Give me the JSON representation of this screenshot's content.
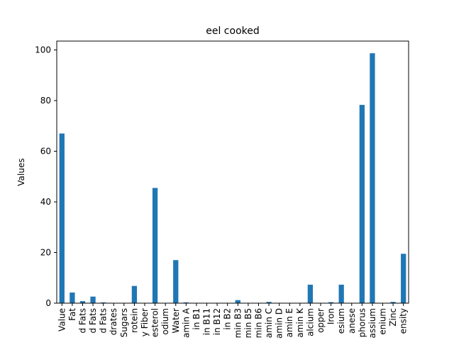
{
  "chart_data": {
    "type": "bar",
    "title": "eel cooked",
    "xlabel": "",
    "ylabel": "Values",
    "ylim": [
      0,
      103.5
    ],
    "yticks": [
      0,
      20,
      40,
      60,
      80,
      100
    ],
    "grid": false,
    "legend": "none",
    "bar_color": "#1f77b4",
    "categories": [
      "Value",
      "Fat",
      "d Fats",
      "d Fats",
      "d Fats",
      "drates",
      "Sugars",
      "rotein",
      "y Fiber",
      "esterol",
      "odium",
      "Water",
      "amin A",
      "in B1",
      "in B11",
      "in B12",
      "in B2",
      "min B3",
      "min B5",
      "min B6",
      "amin C",
      "amin D",
      "amin E",
      "amin K",
      "alcium",
      "opper",
      "Iron",
      "esium",
      "anese",
      "phorus",
      "assium",
      "enium",
      "Zinc",
      "ensity"
    ],
    "values": [
      67,
      4.2,
      0.8,
      2.6,
      0.3,
      0,
      0,
      6.8,
      0,
      45.5,
      0,
      17,
      0.3,
      0.1,
      0,
      0.1,
      0.1,
      1.2,
      0.1,
      0.1,
      0.5,
      0.1,
      0.1,
      0,
      7.3,
      0,
      0.4,
      7.3,
      0,
      78.3,
      98.7,
      0.1,
      0.5,
      19.5
    ]
  }
}
